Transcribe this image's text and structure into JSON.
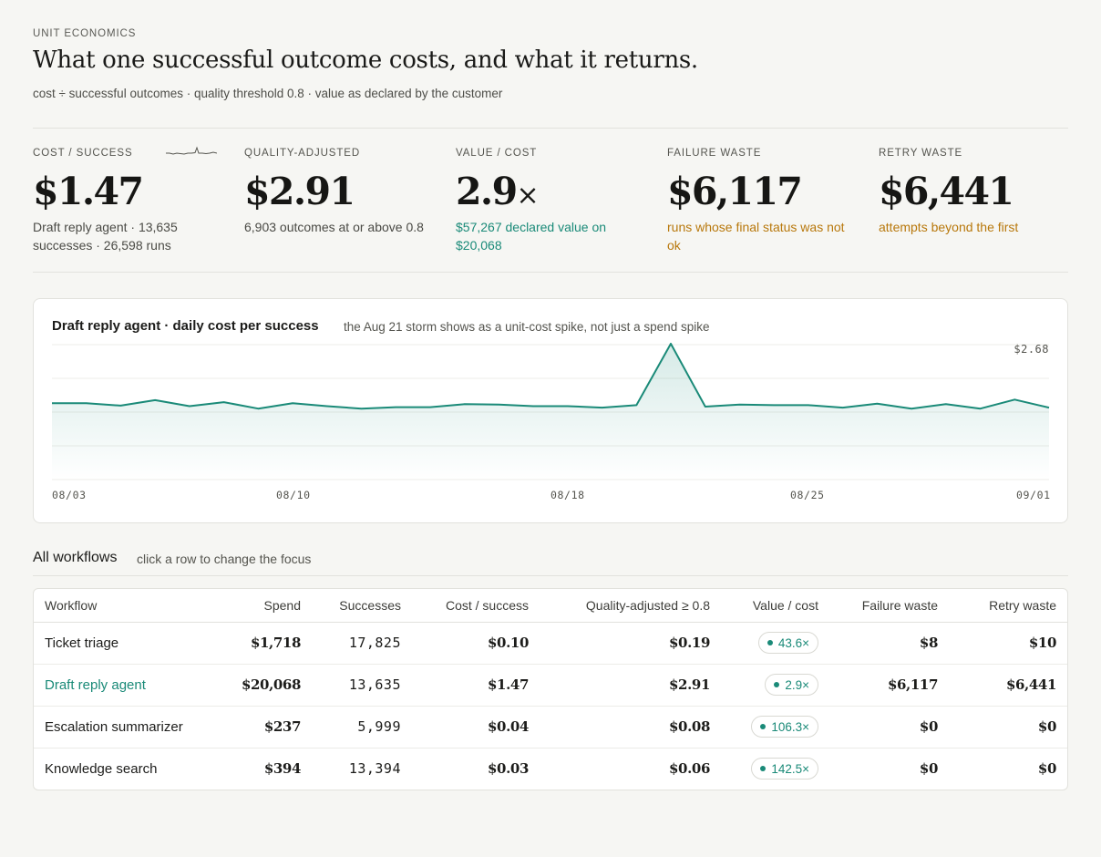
{
  "header": {
    "eyebrow": "UNIT ECONOMICS",
    "title": "What one successful outcome costs, and what it returns.",
    "subtitle": "cost ÷ successful outcomes · quality threshold 0.8 · value as declared by the customer"
  },
  "kpis": [
    {
      "label": "COST / SUCCESS",
      "value": "$1.47",
      "suffix": "",
      "note": "Draft reply agent · 13,635 successes · 26,598 runs",
      "tone": "neutral"
    },
    {
      "label": "QUALITY-ADJUSTED",
      "value": "$2.91",
      "suffix": "",
      "note": "6,903 outcomes at or above 0.8",
      "tone": "neutral"
    },
    {
      "label": "VALUE / COST",
      "value": "2.9",
      "suffix": "×",
      "note": "$57,267 declared value on $20,068",
      "tone": "green"
    },
    {
      "label": "FAILURE WASTE",
      "value": "$6,117",
      "suffix": "",
      "note": "runs whose final status was not ok",
      "tone": "amber"
    },
    {
      "label": "RETRY WASTE",
      "value": "$6,441",
      "suffix": "",
      "note": "attempts beyond the first",
      "tone": "amber"
    }
  ],
  "chart": {
    "title": "Draft reply agent · daily cost per success",
    "subtitle": "the Aug 21 storm shows as a unit-cost spike, not just a spend spike",
    "max_label": "$2.68",
    "x_ticks": [
      "08/03",
      "08/10",
      "08/18",
      "08/25",
      "09/01"
    ]
  },
  "chart_data": {
    "type": "area",
    "title": "Draft reply agent · daily cost per success",
    "xlabel": "",
    "ylabel": "",
    "x_ticks": [
      "08/03",
      "08/10",
      "08/18",
      "08/25",
      "09/01"
    ],
    "x": [
      "08/03",
      "08/04",
      "08/05",
      "08/06",
      "08/07",
      "08/08",
      "08/09",
      "08/10",
      "08/11",
      "08/12",
      "08/13",
      "08/14",
      "08/15",
      "08/16",
      "08/17",
      "08/18",
      "08/19",
      "08/20",
      "08/21",
      "08/22",
      "08/23",
      "08/24",
      "08/25",
      "08/26",
      "08/27",
      "08/28",
      "08/29",
      "08/30",
      "08/31",
      "09/01"
    ],
    "values": [
      1.5,
      1.5,
      1.45,
      1.56,
      1.44,
      1.52,
      1.39,
      1.5,
      1.44,
      1.39,
      1.42,
      1.42,
      1.48,
      1.47,
      1.44,
      1.44,
      1.41,
      1.46,
      2.68,
      1.43,
      1.47,
      1.46,
      1.46,
      1.41,
      1.49,
      1.39,
      1.48,
      1.39,
      1.57,
      1.41
    ],
    "ylim": [
      0,
      2.68
    ],
    "grid": true,
    "legend": "none"
  },
  "section": {
    "title": "All workflows",
    "subtitle": "click a row to change the focus"
  },
  "table": {
    "columns": [
      "Workflow",
      "Spend",
      "Successes",
      "Cost / success",
      "Quality-adjusted ≥ 0.8",
      "Value / cost",
      "Failure waste",
      "Retry waste"
    ],
    "rows": [
      {
        "name": "Ticket triage",
        "spend": "$1,718",
        "successes": "17,825",
        "cost": "$0.10",
        "qadj": "$0.19",
        "value": "43.6×",
        "failure": "$8",
        "retry": "$10",
        "focus": false
      },
      {
        "name": "Draft reply agent",
        "spend": "$20,068",
        "successes": "13,635",
        "cost": "$1.47",
        "qadj": "$2.91",
        "value": "2.9×",
        "failure": "$6,117",
        "retry": "$6,441",
        "focus": true
      },
      {
        "name": "Escalation summarizer",
        "spend": "$237",
        "successes": "5,999",
        "cost": "$0.04",
        "qadj": "$0.08",
        "value": "106.3×",
        "failure": "$0",
        "retry": "$0",
        "focus": false
      },
      {
        "name": "Knowledge search",
        "spend": "$394",
        "successes": "13,394",
        "cost": "$0.03",
        "qadj": "$0.06",
        "value": "142.5×",
        "failure": "$0",
        "retry": "$0",
        "focus": false
      }
    ]
  },
  "colors": {
    "accent": "#1a8a78",
    "warning": "#b8780c",
    "background": "#f6f6f3"
  }
}
